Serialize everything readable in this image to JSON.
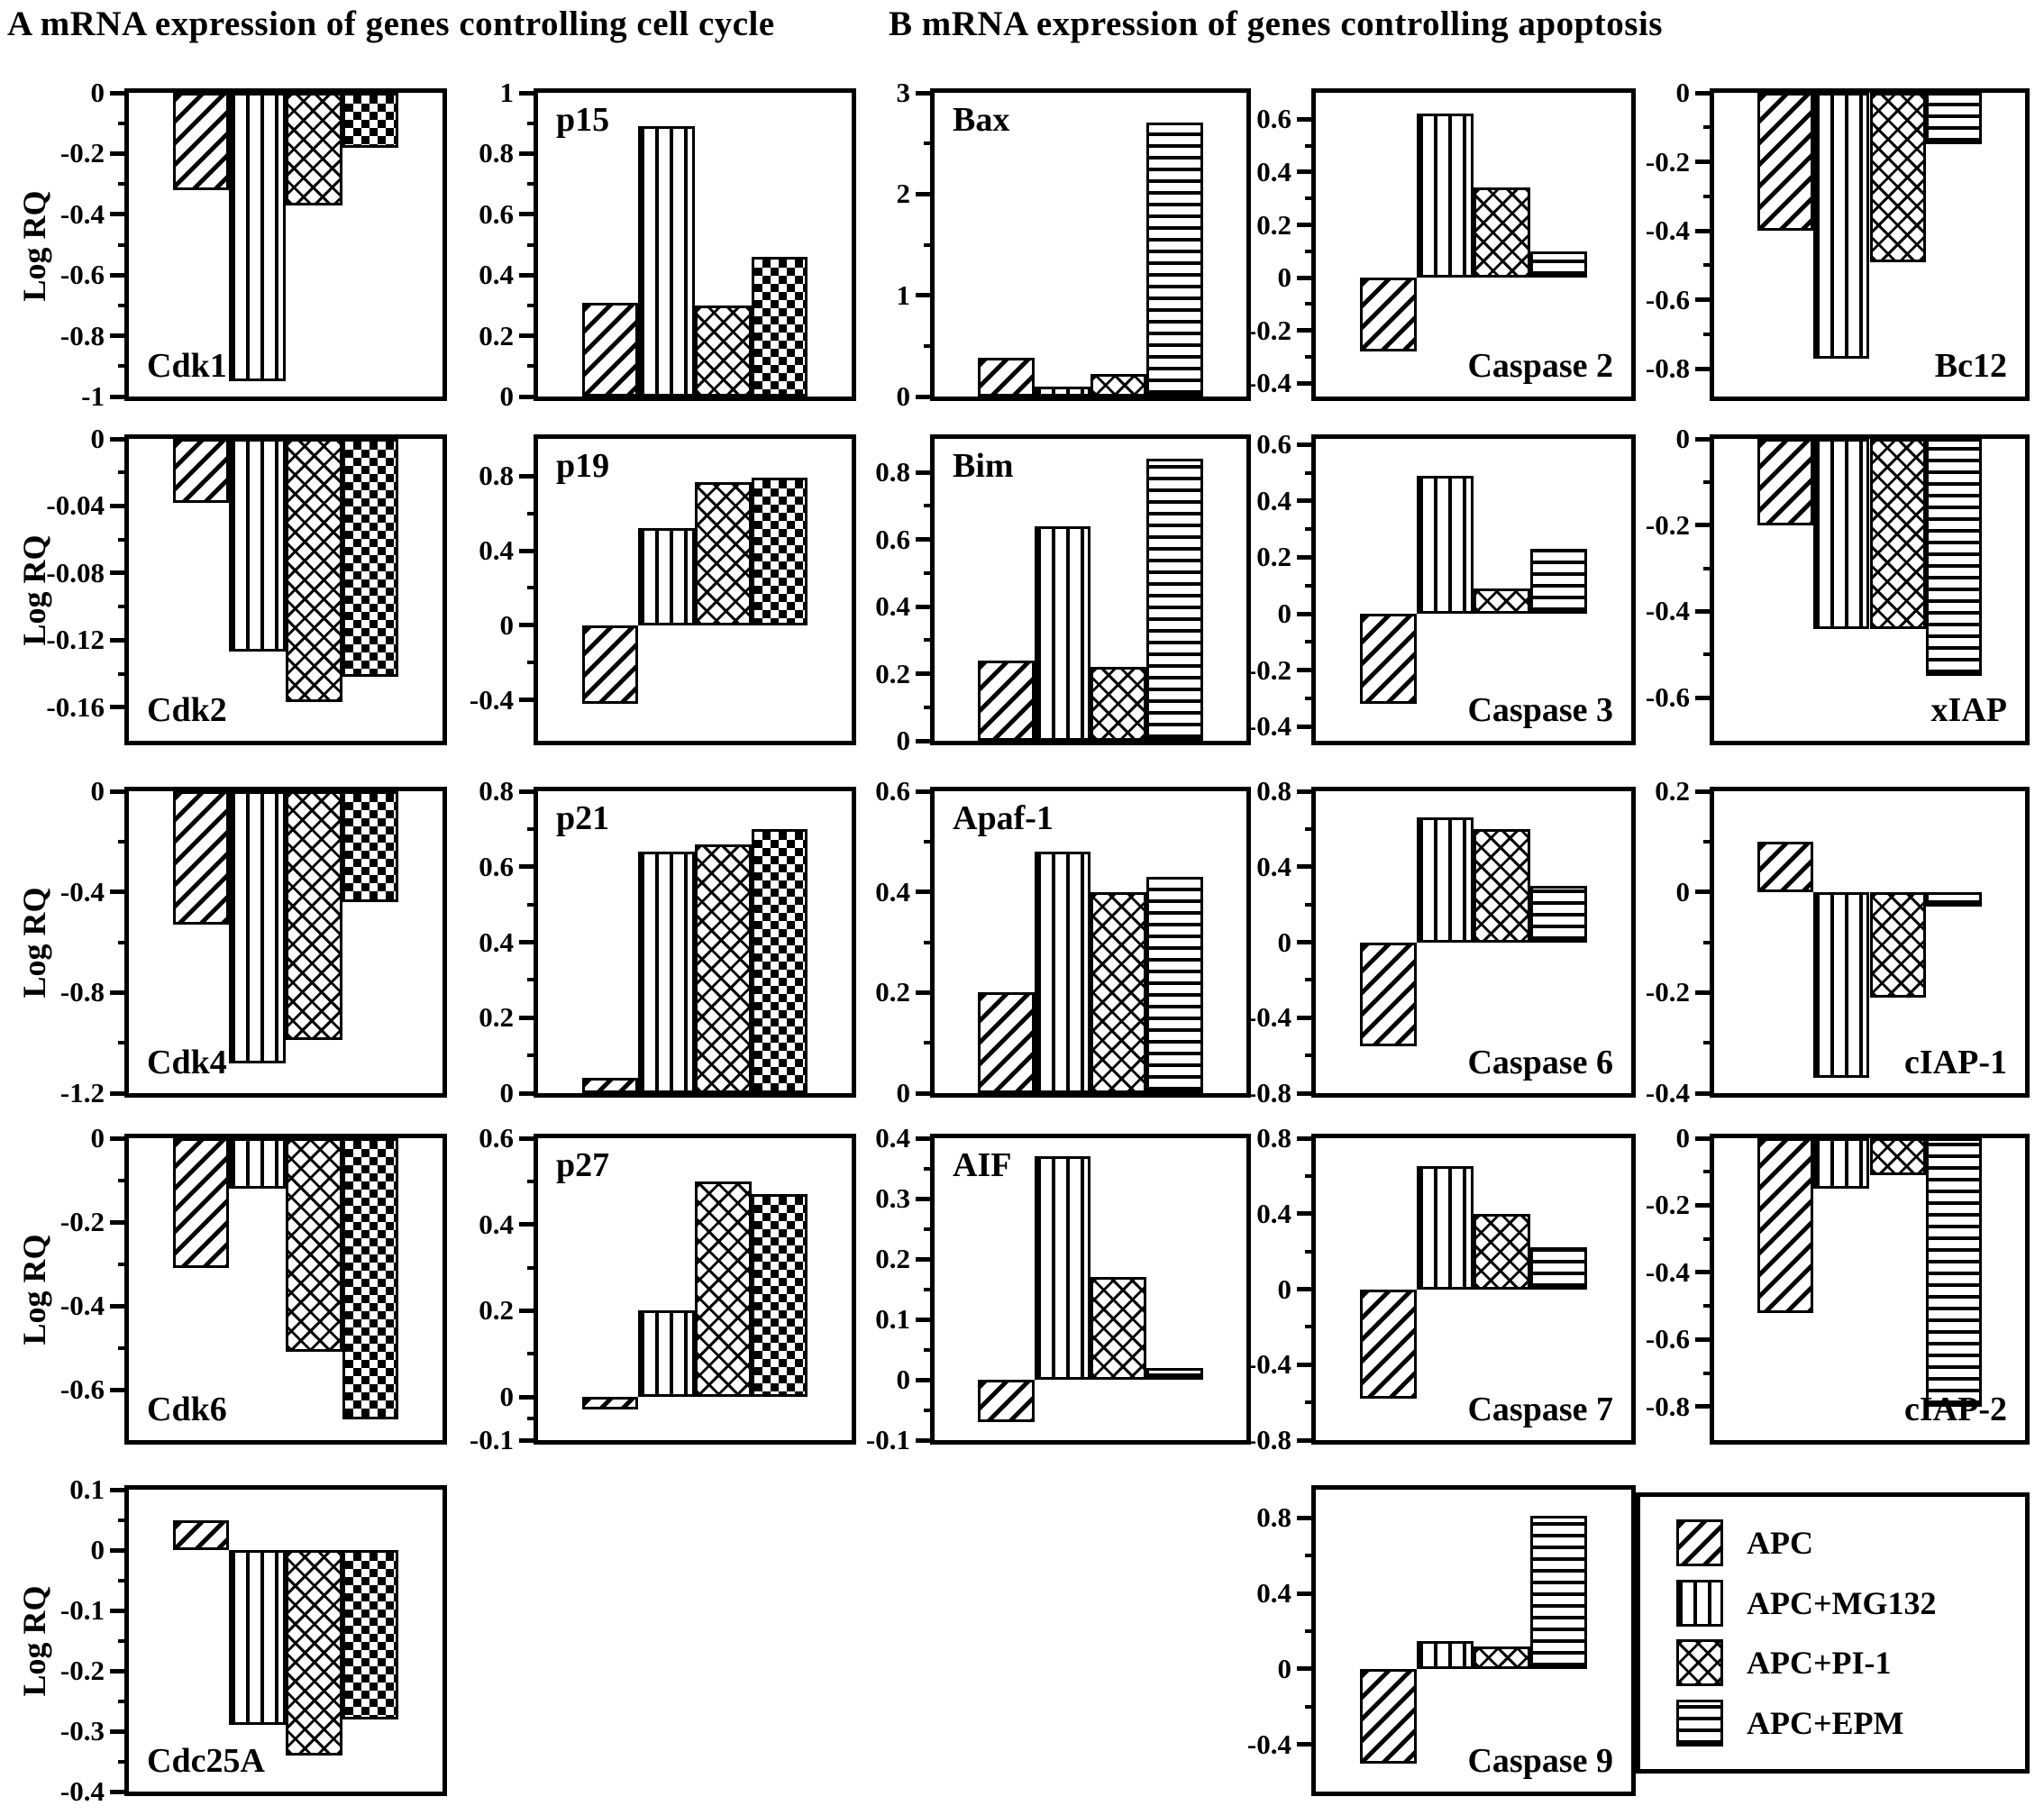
{
  "panel_a": {
    "title": "A  mRNA expression of genes controlling cell cycle"
  },
  "panel_b": {
    "title": "B  mRNA expression of genes controlling apoptosis"
  },
  "y_axis_label": "Log RQ",
  "series": [
    {
      "label": "APC",
      "pattern": "diag"
    },
    {
      "label": "APC+MG132",
      "pattern": "vert"
    },
    {
      "label": "APC+PI-1",
      "pattern": "cross"
    },
    {
      "label": "APC+EPM",
      "pattern": "horiz"
    }
  ],
  "legend": {
    "items": [
      "APC",
      "APC+MG132",
      "APC+PI-1",
      "APC+EPM"
    ]
  },
  "colors": {
    "ink": "#000000",
    "background": "#ffffff"
  },
  "chart_data": [
    {
      "type": "bar",
      "gene": "Cdk1",
      "panel": "A",
      "col": 1,
      "row": 1,
      "ylabel": "Log RQ",
      "ylim": [
        -1.0,
        0
      ],
      "ticks": [
        {
          "v": 0,
          "label": "0"
        },
        {
          "v": -0.2,
          "label": "-0.2"
        },
        {
          "v": -0.4,
          "label": "-0.4"
        },
        {
          "v": -0.6,
          "label": "-0.6"
        },
        {
          "v": -0.8,
          "label": "-0.8"
        },
        {
          "v": -1.0,
          "label": "-1"
        }
      ],
      "values": [
        -0.32,
        -0.95,
        -0.37,
        -0.18
      ],
      "patterns": [
        "diag",
        "vert",
        "cross",
        "check"
      ],
      "label_pos": "bottom-left"
    },
    {
      "type": "bar",
      "gene": "p15",
      "panel": "A",
      "col": 2,
      "row": 1,
      "ylabel": "",
      "ylim": [
        0,
        1.0
      ],
      "ticks": [
        {
          "v": 1.0,
          "label": "1"
        },
        {
          "v": 0.8,
          "label": "0.8"
        },
        {
          "v": 0.6,
          "label": "0.6"
        },
        {
          "v": 0.4,
          "label": "0.4"
        },
        {
          "v": 0.2,
          "label": "0.2"
        },
        {
          "v": 0,
          "label": "0"
        }
      ],
      "values": [
        0.31,
        0.89,
        0.3,
        0.46
      ],
      "patterns": [
        "diag",
        "vert",
        "cross",
        "check"
      ],
      "label_pos": "top-left"
    },
    {
      "type": "bar",
      "gene": "Cdk2",
      "panel": "A",
      "col": 1,
      "row": 2,
      "ylabel": "Log RQ",
      "ylim": [
        -0.18,
        0
      ],
      "ticks": [
        {
          "v": 0,
          "label": "0"
        },
        {
          "v": -0.04,
          "label": "-0.04"
        },
        {
          "v": -0.08,
          "label": "-0.08"
        },
        {
          "v": -0.12,
          "label": "-0.12"
        },
        {
          "v": -0.16,
          "label": "-0.16"
        }
      ],
      "values": [
        -0.038,
        -0.127,
        -0.157,
        -0.142
      ],
      "patterns": [
        "diag",
        "vert",
        "cross",
        "check"
      ],
      "label_pos": "bottom-left"
    },
    {
      "type": "bar",
      "gene": "p19",
      "panel": "A",
      "col": 2,
      "row": 2,
      "ylabel": "",
      "ylim": [
        -0.62,
        1.0
      ],
      "ticks": [
        {
          "v": 0.8,
          "label": "0.8"
        },
        {
          "v": 0.4,
          "label": "0.4"
        },
        {
          "v": 0,
          "label": "0"
        },
        {
          "v": -0.4,
          "label": "-0.4"
        }
      ],
      "values": [
        -0.42,
        0.52,
        0.77,
        0.79
      ],
      "patterns": [
        "diag",
        "vert",
        "cross",
        "check"
      ],
      "label_pos": "top-left"
    },
    {
      "type": "bar",
      "gene": "Cdk4",
      "panel": "A",
      "col": 1,
      "row": 3,
      "ylabel": "Log RQ",
      "ylim": [
        -1.2,
        0
      ],
      "ticks": [
        {
          "v": 0,
          "label": "0"
        },
        {
          "v": -0.4,
          "label": "-0.4"
        },
        {
          "v": -0.8,
          "label": "-0.8"
        },
        {
          "v": -1.2,
          "label": "-1.2"
        }
      ],
      "values": [
        -0.53,
        -1.08,
        -0.99,
        -0.44
      ],
      "patterns": [
        "diag",
        "vert",
        "cross",
        "check"
      ],
      "label_pos": "bottom-left"
    },
    {
      "type": "bar",
      "gene": "p21",
      "panel": "A",
      "col": 2,
      "row": 3,
      "ylabel": "",
      "ylim": [
        0,
        0.8
      ],
      "ticks": [
        {
          "v": 0.8,
          "label": "0.8"
        },
        {
          "v": 0.6,
          "label": "0.6"
        },
        {
          "v": 0.4,
          "label": "0.4"
        },
        {
          "v": 0.2,
          "label": "0.2"
        },
        {
          "v": 0,
          "label": "0"
        }
      ],
      "values": [
        0.04,
        0.64,
        0.66,
        0.7
      ],
      "patterns": [
        "diag",
        "vert",
        "cross",
        "check"
      ],
      "label_pos": "top-left"
    },
    {
      "type": "bar",
      "gene": "Cdk6",
      "panel": "A",
      "col": 1,
      "row": 4,
      "ylabel": "Log RQ",
      "ylim": [
        -0.72,
        0
      ],
      "ticks": [
        {
          "v": 0,
          "label": "0"
        },
        {
          "v": -0.2,
          "label": "-0.2"
        },
        {
          "v": -0.4,
          "label": "-0.4"
        },
        {
          "v": -0.6,
          "label": "-0.6"
        }
      ],
      "values": [
        -0.31,
        -0.12,
        -0.51,
        -0.67
      ],
      "patterns": [
        "diag",
        "vert",
        "cross",
        "check"
      ],
      "label_pos": "bottom-left"
    },
    {
      "type": "bar",
      "gene": "p27",
      "panel": "A",
      "col": 2,
      "row": 4,
      "ylabel": "",
      "ylim": [
        -0.1,
        0.6
      ],
      "ticks": [
        {
          "v": 0.6,
          "label": "0.6"
        },
        {
          "v": 0.4,
          "label": "0.4"
        },
        {
          "v": 0.2,
          "label": "0.2"
        },
        {
          "v": 0,
          "label": "0"
        },
        {
          "v": -0.1,
          "label": "-0.1"
        }
      ],
      "values": [
        -0.03,
        0.2,
        0.5,
        0.47
      ],
      "patterns": [
        "diag",
        "vert",
        "cross",
        "check"
      ],
      "label_pos": "top-left"
    },
    {
      "type": "bar",
      "gene": "Cdc25A",
      "panel": "A",
      "col": 1,
      "row": 5,
      "ylabel": "Log RQ",
      "ylim": [
        -0.4,
        0.1
      ],
      "ticks": [
        {
          "v": 0.1,
          "label": "0.1"
        },
        {
          "v": 0,
          "label": "0"
        },
        {
          "v": -0.1,
          "label": "-0.1"
        },
        {
          "v": -0.2,
          "label": "-0.2"
        },
        {
          "v": -0.3,
          "label": "-0.3"
        },
        {
          "v": -0.4,
          "label": "-0.4"
        }
      ],
      "values": [
        0.05,
        -0.29,
        -0.34,
        -0.28
      ],
      "patterns": [
        "diag",
        "vert",
        "cross",
        "check"
      ],
      "label_pos": "bottom-left"
    },
    {
      "type": "bar",
      "gene": "Bax",
      "panel": "B",
      "col": 3,
      "row": 1,
      "ylabel": "",
      "ylim": [
        0,
        3
      ],
      "ticks": [
        {
          "v": 3,
          "label": "3"
        },
        {
          "v": 2,
          "label": "2"
        },
        {
          "v": 1,
          "label": "1"
        },
        {
          "v": 0,
          "label": "0"
        }
      ],
      "values": [
        0.38,
        0.1,
        0.22,
        2.71
      ],
      "patterns": [
        "diag",
        "vert",
        "cross",
        "horiz"
      ],
      "label_pos": "top-left"
    },
    {
      "type": "bar",
      "gene": "Caspase 2",
      "panel": "B",
      "col": 4,
      "row": 1,
      "ylabel": "",
      "ylim": [
        -0.45,
        0.7
      ],
      "ticks": [
        {
          "v": 0.6,
          "label": "0.6"
        },
        {
          "v": 0.4,
          "label": "0.4"
        },
        {
          "v": 0.2,
          "label": "0.2"
        },
        {
          "v": 0,
          "label": "0"
        },
        {
          "v": -0.2,
          "label": "-0.2"
        },
        {
          "v": -0.4,
          "label": "-0.4"
        }
      ],
      "values": [
        -0.28,
        0.62,
        0.34,
        0.1
      ],
      "patterns": [
        "diag",
        "vert",
        "cross",
        "horiz"
      ],
      "label_pos": "bottom-right"
    },
    {
      "type": "bar",
      "gene": "Bc12",
      "panel": "B",
      "col": 5,
      "row": 1,
      "ylabel": "",
      "ylim": [
        -0.88,
        0
      ],
      "ticks": [
        {
          "v": 0,
          "label": "0"
        },
        {
          "v": -0.2,
          "label": "-0.2"
        },
        {
          "v": -0.4,
          "label": "-0.4"
        },
        {
          "v": -0.6,
          "label": "-0.6"
        },
        {
          "v": -0.8,
          "label": "-0.8"
        }
      ],
      "values": [
        -0.4,
        -0.77,
        -0.49,
        -0.15
      ],
      "patterns": [
        "diag",
        "vert",
        "cross",
        "horiz"
      ],
      "label_pos": "bottom-right"
    },
    {
      "type": "bar",
      "gene": "Bim",
      "panel": "B",
      "col": 3,
      "row": 2,
      "ylabel": "",
      "ylim": [
        0,
        0.9
      ],
      "ticks": [
        {
          "v": 0.8,
          "label": "0.8"
        },
        {
          "v": 0.6,
          "label": "0.6"
        },
        {
          "v": 0.4,
          "label": "0.4"
        },
        {
          "v": 0.2,
          "label": "0.2"
        },
        {
          "v": 0,
          "label": "0"
        }
      ],
      "values": [
        0.24,
        0.64,
        0.22,
        0.84
      ],
      "patterns": [
        "diag",
        "vert",
        "cross",
        "horiz"
      ],
      "label_pos": "top-left"
    },
    {
      "type": "bar",
      "gene": "Caspase 3",
      "panel": "B",
      "col": 4,
      "row": 2,
      "ylabel": "",
      "ylim": [
        -0.45,
        0.62
      ],
      "ticks": [
        {
          "v": 0.6,
          "label": "0.6"
        },
        {
          "v": 0.4,
          "label": "0.4"
        },
        {
          "v": 0.2,
          "label": "0.2"
        },
        {
          "v": 0,
          "label": "0"
        },
        {
          "v": -0.2,
          "label": "-0.2"
        },
        {
          "v": -0.4,
          "label": "-0.4"
        }
      ],
      "values": [
        -0.32,
        0.49,
        0.09,
        0.23
      ],
      "patterns": [
        "diag",
        "vert",
        "cross",
        "horiz"
      ],
      "label_pos": "bottom-right"
    },
    {
      "type": "bar",
      "gene": "xIAP",
      "panel": "B",
      "col": 5,
      "row": 2,
      "ylabel": "",
      "ylim": [
        -0.7,
        0
      ],
      "ticks": [
        {
          "v": 0,
          "label": "0"
        },
        {
          "v": -0.2,
          "label": "-0.2"
        },
        {
          "v": -0.4,
          "label": "-0.4"
        },
        {
          "v": -0.6,
          "label": "-0.6"
        }
      ],
      "values": [
        -0.2,
        -0.44,
        -0.44,
        -0.55
      ],
      "patterns": [
        "diag",
        "vert",
        "cross",
        "horiz"
      ],
      "label_pos": "bottom-right"
    },
    {
      "type": "bar",
      "gene": "Apaf-1",
      "panel": "B",
      "col": 3,
      "row": 3,
      "ylabel": "",
      "ylim": [
        0,
        0.6
      ],
      "ticks": [
        {
          "v": 0.6,
          "label": "0.6"
        },
        {
          "v": 0.4,
          "label": "0.4"
        },
        {
          "v": 0.2,
          "label": "0.2"
        },
        {
          "v": 0,
          "label": "0"
        }
      ],
      "values": [
        0.2,
        0.48,
        0.4,
        0.43
      ],
      "patterns": [
        "diag",
        "vert",
        "cross",
        "horiz"
      ],
      "label_pos": "top-left"
    },
    {
      "type": "bar",
      "gene": "Caspase 6",
      "panel": "B",
      "col": 4,
      "row": 3,
      "ylabel": "",
      "ylim": [
        -0.8,
        0.8
      ],
      "ticks": [
        {
          "v": 0.8,
          "label": "0.8"
        },
        {
          "v": 0.4,
          "label": "0.4"
        },
        {
          "v": 0,
          "label": "0"
        },
        {
          "v": -0.4,
          "label": "-0.4"
        },
        {
          "v": -0.8,
          "label": "-0.8"
        }
      ],
      "values": [
        -0.55,
        0.66,
        0.6,
        0.3
      ],
      "patterns": [
        "diag",
        "vert",
        "cross",
        "horiz"
      ],
      "label_pos": "bottom-right"
    },
    {
      "type": "bar",
      "gene": "cIAP-1",
      "panel": "B",
      "col": 5,
      "row": 3,
      "ylabel": "",
      "ylim": [
        -0.4,
        0.2
      ],
      "ticks": [
        {
          "v": 0.2,
          "label": "0.2"
        },
        {
          "v": 0,
          "label": "0"
        },
        {
          "v": -0.2,
          "label": "-0.2"
        },
        {
          "v": -0.4,
          "label": "-0.4"
        }
      ],
      "values": [
        0.1,
        -0.37,
        -0.21,
        -0.03
      ],
      "patterns": [
        "diag",
        "vert",
        "cross",
        "horiz"
      ],
      "label_pos": "bottom-right"
    },
    {
      "type": "bar",
      "gene": "AIF",
      "panel": "B",
      "col": 3,
      "row": 4,
      "ylabel": "",
      "ylim": [
        -0.1,
        0.4
      ],
      "ticks": [
        {
          "v": 0.4,
          "label": "0.4"
        },
        {
          "v": 0.3,
          "label": "0.3"
        },
        {
          "v": 0.2,
          "label": "0.2"
        },
        {
          "v": 0.1,
          "label": "0.1"
        },
        {
          "v": 0,
          "label": "0"
        },
        {
          "v": -0.1,
          "label": "-0.1"
        }
      ],
      "values": [
        -0.07,
        0.37,
        0.17,
        0.02
      ],
      "patterns": [
        "diag",
        "vert",
        "cross",
        "horiz"
      ],
      "label_pos": "top-left"
    },
    {
      "type": "bar",
      "gene": "Caspase 7",
      "panel": "B",
      "col": 4,
      "row": 4,
      "ylabel": "",
      "ylim": [
        -0.8,
        0.8
      ],
      "ticks": [
        {
          "v": 0.8,
          "label": "0.8"
        },
        {
          "v": 0.4,
          "label": "0.4"
        },
        {
          "v": 0,
          "label": "0"
        },
        {
          "v": -0.4,
          "label": "-0.4"
        },
        {
          "v": -0.8,
          "label": "-0.8"
        }
      ],
      "values": [
        -0.58,
        0.65,
        0.4,
        0.22
      ],
      "patterns": [
        "diag",
        "vert",
        "cross",
        "horiz"
      ],
      "label_pos": "bottom-right"
    },
    {
      "type": "bar",
      "gene": "cIAP-2",
      "panel": "B",
      "col": 5,
      "row": 4,
      "ylabel": "",
      "ylim": [
        -0.9,
        0
      ],
      "ticks": [
        {
          "v": 0,
          "label": "0"
        },
        {
          "v": -0.2,
          "label": "-0.2"
        },
        {
          "v": -0.4,
          "label": "-0.4"
        },
        {
          "v": -0.6,
          "label": "-0.6"
        },
        {
          "v": -0.8,
          "label": "-0.8"
        }
      ],
      "values": [
        -0.52,
        -0.15,
        -0.11,
        -0.8
      ],
      "patterns": [
        "diag",
        "vert",
        "cross",
        "horiz"
      ],
      "label_pos": "bottom-right"
    },
    {
      "type": "bar",
      "gene": "Caspase 9",
      "panel": "B",
      "col": 4,
      "row": 5,
      "ylabel": "",
      "ylim": [
        -0.65,
        0.95
      ],
      "ticks": [
        {
          "v": 0.8,
          "label": "0.8"
        },
        {
          "v": 0.4,
          "label": "0.4"
        },
        {
          "v": 0,
          "label": "0"
        },
        {
          "v": -0.4,
          "label": "-0.4"
        }
      ],
      "values": [
        -0.5,
        0.15,
        0.12,
        0.81
      ],
      "patterns": [
        "diag",
        "vert",
        "cross",
        "horiz"
      ],
      "label_pos": "bottom-right"
    }
  ]
}
